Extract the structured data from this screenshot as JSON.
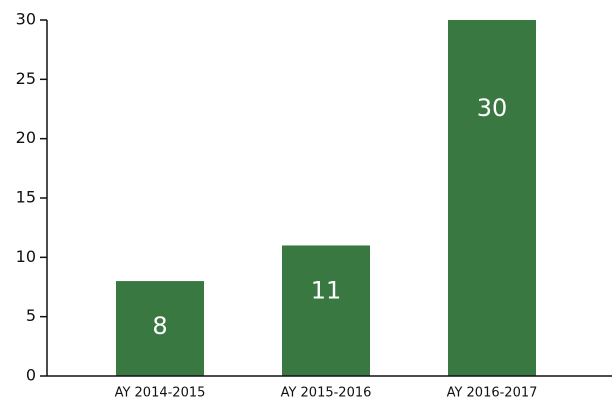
{
  "chart_data": {
    "type": "bar",
    "categories": [
      "AY 2014-2015",
      "AY 2015-2016",
      "AY 2016-2017"
    ],
    "values": [
      8,
      11,
      30
    ],
    "color": "#3a7841",
    "ylim": [
      0,
      30
    ],
    "yticks": [
      0,
      5,
      10,
      15,
      20,
      25,
      30
    ],
    "grid": false
  }
}
